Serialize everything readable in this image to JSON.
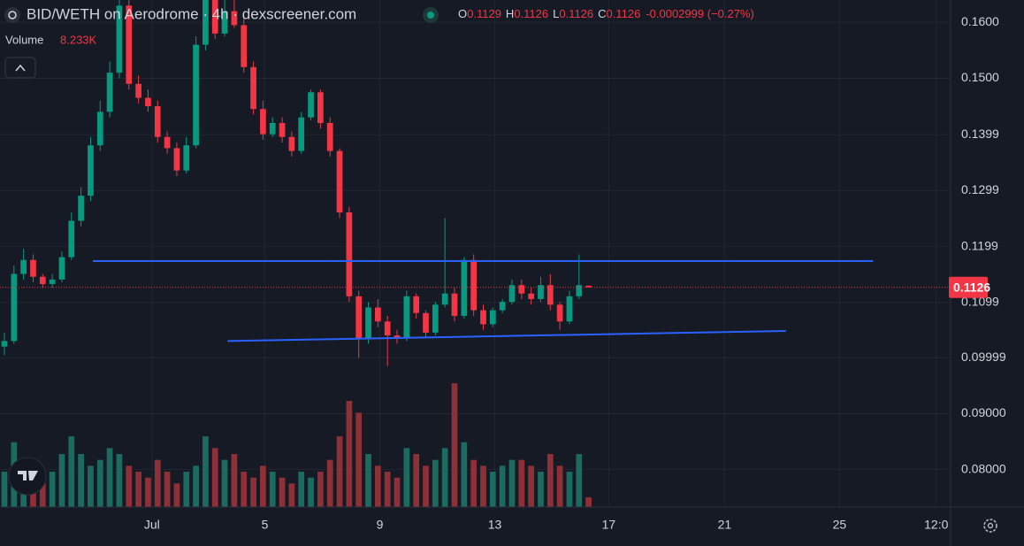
{
  "chart_data": {
    "type": "candlestick",
    "title": "BID/WETH on Aerodrome · 4h · dexscreener.com",
    "ohlc_letters": [
      "O",
      "H",
      "L",
      "C"
    ],
    "change_label": "-0.0002999 (−0.27%)",
    "volume_name": "Volume",
    "volume_value_label": "8.233K",
    "up_color": "#089981",
    "down_color": "#f23645",
    "volume_up_color": "#1c6b5f",
    "volume_down_color": "#8e3038",
    "trendline_color": "#2962ff",
    "grid": true,
    "x": [
      0,
      1,
      2,
      3,
      4,
      5,
      6,
      7,
      8,
      9,
      10,
      11,
      12,
      13,
      14,
      15,
      16,
      17,
      18,
      19,
      20,
      21,
      22,
      23,
      24,
      25,
      26,
      27,
      28,
      29,
      30,
      31,
      32,
      33,
      34,
      35,
      36,
      37,
      38,
      39,
      40,
      41,
      42,
      43,
      44,
      45,
      46,
      47,
      48,
      49,
      50,
      51,
      52,
      53,
      54,
      55,
      56,
      57,
      58,
      59,
      60,
      61
    ],
    "open": [
      0.102,
      0.103,
      0.115,
      0.1175,
      0.1145,
      0.1132,
      0.114,
      0.118,
      0.1245,
      0.129,
      0.138,
      0.144,
      0.151,
      0.163,
      0.149,
      0.1465,
      0.145,
      0.1395,
      0.1375,
      0.1335,
      0.138,
      0.156,
      0.164,
      0.158,
      0.162,
      0.1595,
      0.152,
      0.1445,
      0.14,
      0.142,
      0.1395,
      0.137,
      0.143,
      0.1475,
      0.142,
      0.137,
      0.126,
      0.111,
      0.1035,
      0.109,
      0.1065,
      0.104,
      0.1035,
      0.111,
      0.108,
      0.1045,
      0.1095,
      0.1115,
      0.1075,
      0.1175,
      0.1085,
      0.106,
      0.1085,
      0.11,
      0.113,
      0.1115,
      0.1105,
      0.113,
      0.1095,
      0.1065,
      0.111,
      0.1129
    ],
    "high": [
      0.1045,
      0.1165,
      0.1195,
      0.1185,
      0.115,
      0.115,
      0.119,
      0.126,
      0.1305,
      0.1395,
      0.146,
      0.153,
      0.166,
      0.165,
      0.1505,
      0.148,
      0.146,
      0.1405,
      0.1385,
      0.1395,
      0.1575,
      0.166,
      0.166,
      0.164,
      0.164,
      0.161,
      0.153,
      0.146,
      0.143,
      0.143,
      0.1405,
      0.144,
      0.148,
      0.148,
      0.143,
      0.1375,
      0.127,
      0.112,
      0.11,
      0.1105,
      0.1075,
      0.105,
      0.112,
      0.1115,
      0.1085,
      0.11,
      0.125,
      0.1125,
      0.118,
      0.1185,
      0.1095,
      0.109,
      0.1105,
      0.114,
      0.114,
      0.1125,
      0.1145,
      0.115,
      0.11,
      0.112,
      0.1185,
      0.1126
    ],
    "low": [
      0.1005,
      0.1025,
      0.114,
      0.1135,
      0.1125,
      0.1125,
      0.1135,
      0.1175,
      0.1235,
      0.128,
      0.137,
      0.143,
      0.15,
      0.148,
      0.1455,
      0.144,
      0.1385,
      0.1365,
      0.1325,
      0.133,
      0.1375,
      0.155,
      0.157,
      0.1575,
      0.159,
      0.151,
      0.1435,
      0.139,
      0.1395,
      0.1385,
      0.136,
      0.1365,
      0.1425,
      0.141,
      0.136,
      0.125,
      0.11,
      0.1,
      0.1025,
      0.1055,
      0.0985,
      0.1025,
      0.103,
      0.107,
      0.1035,
      0.104,
      0.109,
      0.1065,
      0.107,
      0.1075,
      0.105,
      0.1055,
      0.108,
      0.1095,
      0.1105,
      0.1095,
      0.11,
      0.1085,
      0.105,
      0.106,
      0.1105,
      0.1126
    ],
    "close": [
      0.103,
      0.115,
      0.1175,
      0.1145,
      0.1132,
      0.114,
      0.118,
      0.1245,
      0.129,
      0.138,
      0.144,
      0.151,
      0.163,
      0.149,
      0.1465,
      0.145,
      0.1395,
      0.1375,
      0.1335,
      0.138,
      0.156,
      0.164,
      0.158,
      0.162,
      0.1595,
      0.152,
      0.1445,
      0.14,
      0.142,
      0.1395,
      0.137,
      0.143,
      0.1475,
      0.142,
      0.137,
      0.126,
      0.111,
      0.1035,
      0.109,
      0.1065,
      0.104,
      0.1035,
      0.111,
      0.108,
      0.1045,
      0.1095,
      0.1115,
      0.1075,
      0.1175,
      0.1085,
      0.106,
      0.1085,
      0.11,
      0.113,
      0.1115,
      0.1105,
      0.113,
      0.1095,
      0.1065,
      0.111,
      0.113,
      0.1126
    ],
    "volume": [
      30,
      55,
      40,
      25,
      20,
      30,
      45,
      60,
      45,
      35,
      40,
      50,
      45,
      35,
      30,
      25,
      40,
      30,
      20,
      30,
      35,
      60,
      50,
      40,
      45,
      30,
      25,
      35,
      30,
      25,
      20,
      30,
      25,
      30,
      40,
      60,
      90,
      80,
      45,
      35,
      30,
      25,
      50,
      45,
      35,
      40,
      50,
      105,
      55,
      40,
      35,
      30,
      35,
      40,
      40,
      35,
      30,
      45,
      35,
      30,
      45,
      8.233
    ],
    "vlim": [
      0,
      430
    ],
    "xlim": [
      -0.46,
      98.8
    ],
    "xticks": [
      {
        "value": 15.4,
        "label": "Jul"
      },
      {
        "value": 27.2,
        "label": "5"
      },
      {
        "value": 39.2,
        "label": "9"
      },
      {
        "value": 51.2,
        "label": "13"
      },
      {
        "value": 63.1,
        "label": "17"
      },
      {
        "value": 75.2,
        "label": "21"
      },
      {
        "value": 87.2,
        "label": "25"
      },
      {
        "value": 97.3,
        "label": "12:0"
      }
    ],
    "ylim": [
      0.0733,
      0.164
    ],
    "yticks": [
      {
        "value": 0.16,
        "label": "0.1600"
      },
      {
        "value": 0.15,
        "label": "0.1500"
      },
      0.1399,
      0.1299,
      0.1199,
      0.1099,
      0.09999,
      {
        "value": 0.09,
        "label": "0.09000"
      },
      {
        "value": 0.08,
        "label": "0.08000"
      }
    ],
    "trendlines": [
      {
        "x": [
          9.23,
          90.7
        ],
        "y": [
          0.1173,
          0.1173
        ]
      },
      {
        "x": [
          23.3,
          81.6
        ],
        "y": [
          0.103,
          0.1048
        ]
      }
    ]
  }
}
